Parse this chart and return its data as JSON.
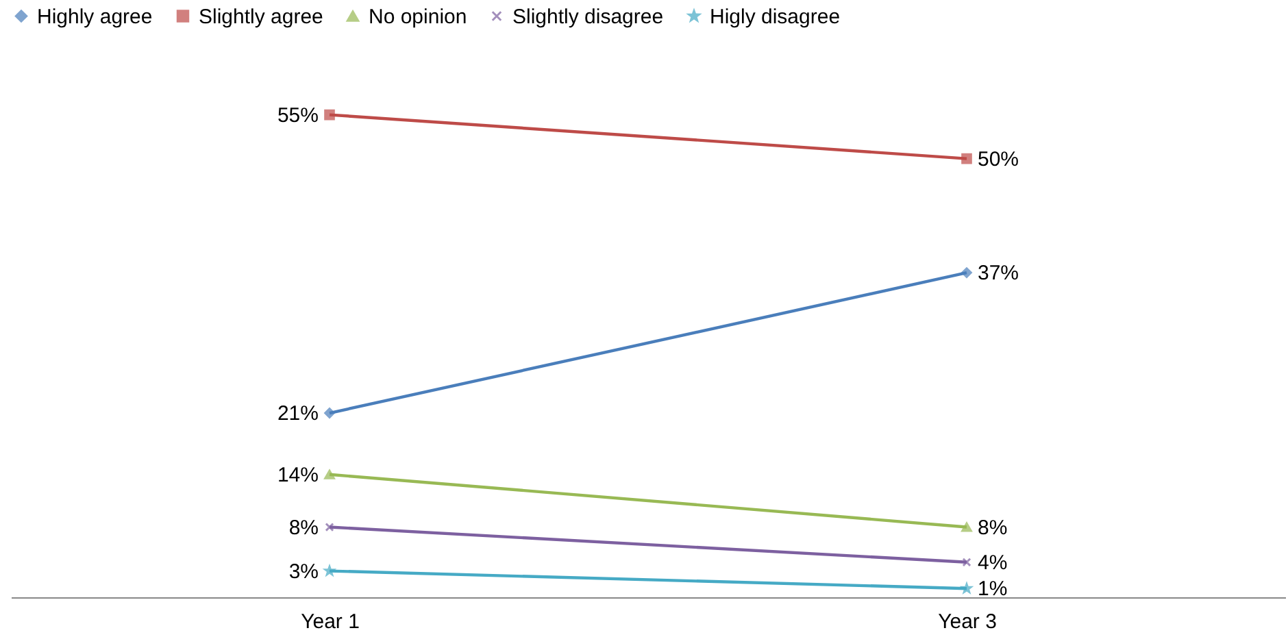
{
  "chart_data": {
    "type": "line",
    "categories": [
      "Year 1",
      "Year 3"
    ],
    "legend": "top",
    "grid": false,
    "series": [
      {
        "name": "Highly agree",
        "color": "#4a7ebb",
        "marker": "diamond",
        "values": [
          21,
          37
        ],
        "value_labels": [
          "21%",
          "37%"
        ]
      },
      {
        "name": "Slightly agree",
        "color": "#be4b48",
        "marker": "square",
        "values": [
          55,
          50
        ],
        "value_labels": [
          "55%",
          "50%"
        ]
      },
      {
        "name": "No opinion",
        "color": "#98b954",
        "marker": "triangle",
        "values": [
          14,
          8
        ],
        "value_labels": [
          "14%",
          "8%"
        ]
      },
      {
        "name": "Slightly disagree",
        "color": "#7d60a0",
        "marker": "cross",
        "values": [
          8,
          4
        ],
        "value_labels": [
          "8%",
          "4%"
        ]
      },
      {
        "name": "Higly disagree",
        "color": "#46aac5",
        "marker": "star",
        "values": [
          3,
          1
        ],
        "value_labels": [
          "3%",
          "1%"
        ]
      }
    ]
  }
}
